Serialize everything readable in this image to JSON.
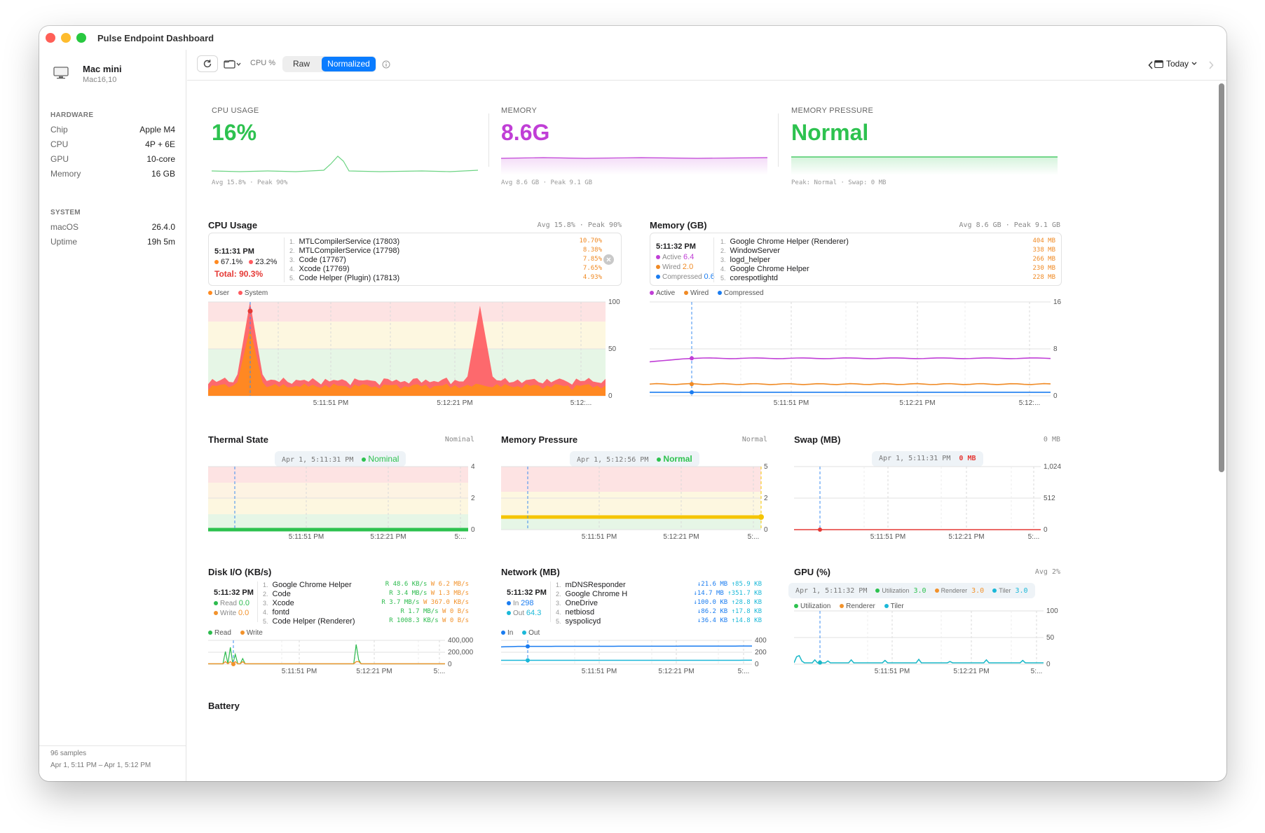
{
  "window": {
    "title": "Pulse Endpoint Dashboard"
  },
  "sidebar": {
    "device_name": "Mac mini",
    "device_model": "Mac16,10",
    "hardware_heading": "HARDWARE",
    "hardware": [
      {
        "label": "Chip",
        "value": "Apple M4"
      },
      {
        "label": "CPU",
        "value": "4P + 6E"
      },
      {
        "label": "GPU",
        "value": "10-core"
      },
      {
        "label": "Memory",
        "value": "16 GB"
      }
    ],
    "system_heading": "SYSTEM",
    "system": [
      {
        "label": "macOS",
        "value": "26.4.0"
      },
      {
        "label": "Uptime",
        "value": "19h 5m"
      }
    ],
    "samples": "96 samples",
    "range": "Apr 1, 5:11 PM – Apr 1, 5:12 PM"
  },
  "toolbar": {
    "metric_label": "CPU %",
    "raw_label": "Raw",
    "normalized_label": "Normalized",
    "date_label": "Today"
  },
  "summary": {
    "cpu": {
      "label": "CPU USAGE",
      "value": "16%",
      "foot": "Avg 15.8% · Peak 90%"
    },
    "memory": {
      "label": "MEMORY",
      "value": "8.6G",
      "foot": "Avg 8.6 GB · Peak 9.1 GB"
    },
    "pressure": {
      "label": "MEMORY PRESSURE",
      "value": "Normal",
      "foot": "Peak: Normal · Swap: 0 MB"
    }
  },
  "cpu_card": {
    "title": "CPU Usage",
    "meta": "Avg 15.8% · Peak 90%",
    "tooltip_time": "5:11:31 PM",
    "user_pct": "67.1%",
    "system_pct": "23.2%",
    "total": "Total: 90.3%",
    "processes": [
      {
        "rank": "1.",
        "name": "MTLCompilerService (17803)",
        "value": "10.70%"
      },
      {
        "rank": "2.",
        "name": "MTLCompilerService (17798)",
        "value": "8.38%"
      },
      {
        "rank": "3.",
        "name": "Code (17767)",
        "value": "7.85%"
      },
      {
        "rank": "4.",
        "name": "Xcode (17769)",
        "value": "7.65%"
      },
      {
        "rank": "5.",
        "name": "Code Helper (Plugin) (17813)",
        "value": "4.93%"
      }
    ],
    "legend_user": "User",
    "legend_system": "System",
    "y_ticks": [
      "100",
      "50",
      "0"
    ],
    "x_ticks": [
      "5:11:51 PM",
      "5:12:21 PM",
      "5:12:..."
    ]
  },
  "memory_card": {
    "title": "Memory (GB)",
    "meta": "Avg 8.6 GB · Peak 9.1 GB",
    "tooltip_time": "5:11:32 PM",
    "active_label": "Active",
    "active_value": "6.4",
    "wired_label": "Wired",
    "wired_value": "2.0",
    "compressed_label": "Compressed",
    "compressed_value": "0.6",
    "processes": [
      {
        "rank": "1.",
        "name": "Google Chrome Helper (Renderer)",
        "value": "404 MB"
      },
      {
        "rank": "2.",
        "name": "WindowServer",
        "value": "338 MB"
      },
      {
        "rank": "3.",
        "name": "logd_helper",
        "value": "266 MB"
      },
      {
        "rank": "4.",
        "name": "Google Chrome Helper",
        "value": "230 MB"
      },
      {
        "rank": "5.",
        "name": "corespotlightd",
        "value": "228 MB"
      }
    ],
    "y_ticks": [
      "16",
      "8",
      "0"
    ],
    "x_ticks": [
      "5:11:51 PM",
      "5:12:21 PM",
      "5:12:..."
    ]
  },
  "thermal_card": {
    "title": "Thermal State",
    "meta": "Nominal",
    "pill_time": "Apr 1, 5:11:31 PM",
    "pill_value": "Nominal",
    "y_ticks": [
      "4",
      "2",
      "0"
    ],
    "x_ticks": [
      "5:11:51 PM",
      "5:12:21 PM",
      "5:..."
    ]
  },
  "pressure_card": {
    "title": "Memory Pressure",
    "meta": "Normal",
    "pill_time": "Apr 1, 5:12:56 PM",
    "pill_value": "Normal",
    "y_ticks": [
      "5",
      "2",
      "0"
    ],
    "x_ticks": [
      "5:11:51 PM",
      "5:12:21 PM",
      "5:..."
    ]
  },
  "swap_card": {
    "title": "Swap (MB)",
    "meta": "0 MB",
    "pill_time": "Apr 1, 5:11:31 PM",
    "pill_value": "0 MB",
    "y_ticks": [
      "1,024",
      "512",
      "0"
    ],
    "x_ticks": [
      "5:11:51 PM",
      "5:12:21 PM",
      "5:..."
    ]
  },
  "disk_card": {
    "title": "Disk I/O (KB/s)",
    "tooltip_time": "5:11:32 PM",
    "read_label": "Read",
    "read_value": "0.0",
    "write_label": "Write",
    "write_value": "0.0",
    "processes": [
      {
        "rank": "1.",
        "name": "Google Chrome Helper",
        "read": "R 48.6 KB/s",
        "write": "W 6.2 MB/s"
      },
      {
        "rank": "2.",
        "name": "Code",
        "read": "R 3.4 MB/s",
        "write": "W 1.3 MB/s"
      },
      {
        "rank": "3.",
        "name": "Xcode",
        "read": "R 3.7 MB/s",
        "write": "W 367.0 KB/s"
      },
      {
        "rank": "4.",
        "name": "fontd",
        "read": "R 1.7 MB/s",
        "write": "W 0 B/s"
      },
      {
        "rank": "5.",
        "name": "Code Helper (Renderer)",
        "read": "R 1008.3 KB/s",
        "write": "W 0 B/s"
      }
    ],
    "y_ticks": [
      "400,000",
      "200,000",
      "0"
    ],
    "x_ticks": [
      "5:11:51 PM",
      "5:12:21 PM",
      "5:..."
    ]
  },
  "network_card": {
    "title": "Network (MB)",
    "tooltip_time": "5:11:32 PM",
    "in_label": "In",
    "in_value": "298",
    "out_label": "Out",
    "out_value": "64.3",
    "processes": [
      {
        "rank": "1.",
        "name": "mDNSResponder",
        "down": "↓21.6 MB",
        "up": "↑85.9 KB"
      },
      {
        "rank": "2.",
        "name": "Google Chrome H",
        "down": "↓14.7 MB",
        "up": "↑351.7 KB"
      },
      {
        "rank": "3.",
        "name": "OneDrive",
        "down": "↓100.0 KB",
        "up": "↑28.8 KB"
      },
      {
        "rank": "4.",
        "name": "netbiosd",
        "down": "↓86.2 KB",
        "up": "↑17.8 KB"
      },
      {
        "rank": "5.",
        "name": "syspolicyd",
        "down": "↓36.4 KB",
        "up": "↑14.8 KB"
      }
    ],
    "y_ticks": [
      "400",
      "200",
      "0"
    ],
    "x_ticks": [
      "5:11:51 PM",
      "5:12:21 PM",
      "5:..."
    ]
  },
  "gpu_card": {
    "title": "GPU (%)",
    "meta": "Avg 2%",
    "pill_time": "Apr 1, 5:11:32 PM",
    "util_label": "Utilization",
    "util_value": "3.0",
    "renderer_label": "Renderer",
    "renderer_value": "3.0",
    "tiler_label": "Tiler",
    "tiler_value": "3.0",
    "y_ticks": [
      "100",
      "50",
      "0"
    ],
    "x_ticks": [
      "5:11:51 PM",
      "5:12:21 PM",
      "5:..."
    ]
  },
  "battery_card": {
    "title": "Battery"
  },
  "colors": {
    "accent": "#0a7cff",
    "user": "#ff8a1f",
    "system": "#ff5a5f",
    "active": "#c03ed6",
    "wired": "#f08a24",
    "compressed": "#1a7cf0",
    "green": "#2dc24f",
    "yellow": "#f5c400",
    "swap": "#e53935",
    "read": "#2dbb4e",
    "write": "#f2922b",
    "net_in": "#1a7cf0",
    "net_out": "#1ab8d8",
    "gpu": "#1ab8c8"
  }
}
